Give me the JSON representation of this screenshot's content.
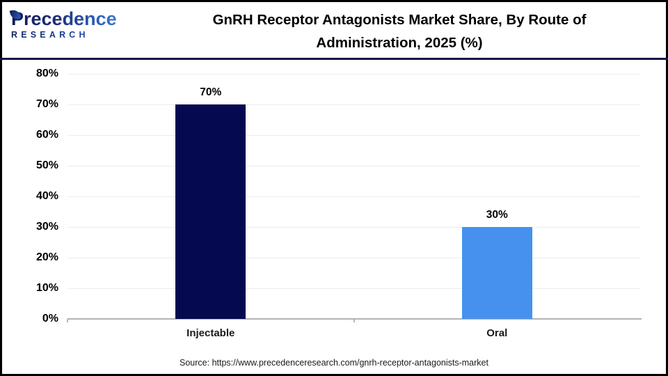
{
  "header": {
    "logo": {
      "name_line": "Precedence",
      "sub_line": "RESEARCH"
    },
    "title_line1": "GnRH Receptor Antagonists Market Share, By Route of",
    "title_line2": "Administration, 2025 (%)"
  },
  "footer": {
    "source": "Source: https://www.precedenceresearch.com/gnrh-receptor-antagonists-market"
  },
  "colors": {
    "brand_navy": "#141a5e",
    "brand_blue": "#3d7bd8",
    "separator_navy": "#131349",
    "injectable_bar": "#050a50",
    "oral_bar": "#4691ee",
    "gridline": "#ececec",
    "axis": "#b3b3b3"
  },
  "chart_data": {
    "type": "bar",
    "title": "GnRH Receptor Antagonists Market Share, By Route of Administration, 2025 (%)",
    "categories": [
      "Injectable",
      "Oral"
    ],
    "values": [
      70,
      30
    ],
    "value_labels": [
      "70%",
      "30%"
    ],
    "bar_colors": [
      "#050a50",
      "#4691ee"
    ],
    "xlabel": "",
    "ylabel": "",
    "ylim": [
      0,
      80
    ],
    "yticks": [
      0,
      10,
      20,
      30,
      40,
      50,
      60,
      70,
      80
    ],
    "ytick_labels": [
      "0%",
      "10%",
      "20%",
      "30%",
      "40%",
      "50%",
      "60%",
      "70%",
      "80%"
    ],
    "grid": true,
    "legend": "none"
  }
}
